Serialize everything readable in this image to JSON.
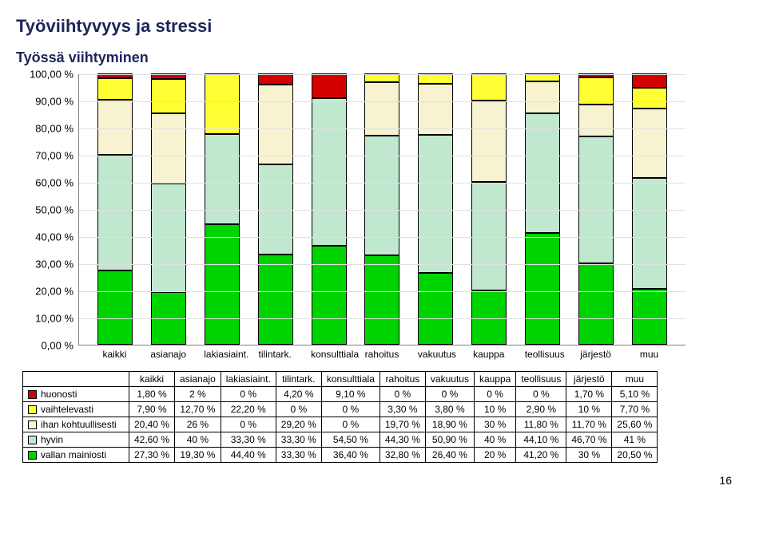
{
  "title_main": "Työviihtyvyys ja stressi",
  "title_sub": "Työssä viihtyminen",
  "page_number": "16",
  "chart": {
    "type": "stacked-bar",
    "y_ticks": [
      "0,00 %",
      "10,00 %",
      "20,00 %",
      "30,00 %",
      "40,00 %",
      "50,00 %",
      "60,00 %",
      "70,00 %",
      "80,00 %",
      "90,00 %",
      "100,00 %"
    ],
    "y_max": 100,
    "categories": [
      "kaikki",
      "asianajo",
      "lakiasiaint.",
      "tilintark.",
      "konsulttiala",
      "rahoitus",
      "vakuutus",
      "kauppa",
      "teollisuus",
      "järjestö",
      "muu"
    ],
    "series": [
      {
        "name": "vallan mainiosti",
        "color": "#00d400",
        "values": [
          27.3,
          19.3,
          44.4,
          33.3,
          36.4,
          32.8,
          26.4,
          20.0,
          41.2,
          30.0,
          20.5
        ]
      },
      {
        "name": "hyvin",
        "color": "#bfe8cf",
        "values": [
          42.6,
          40.0,
          33.3,
          33.3,
          54.5,
          44.3,
          50.9,
          40.0,
          44.1,
          46.7,
          41.0
        ]
      },
      {
        "name": "ihan kohtuullisesti",
        "color": "#f7f2d0",
        "values": [
          20.4,
          26.0,
          0.0,
          29.2,
          0.0,
          19.7,
          18.9,
          30.0,
          11.8,
          11.7,
          25.6
        ]
      },
      {
        "name": "vaihtelevasti",
        "color": "#ffff33",
        "values": [
          7.9,
          12.7,
          22.2,
          0.0,
          0.0,
          3.3,
          3.8,
          10.0,
          2.9,
          10.0,
          7.7
        ]
      },
      {
        "name": "huonosti",
        "color": "#d40000",
        "values": [
          1.8,
          2.0,
          0.0,
          4.2,
          9.1,
          0.0,
          0.0,
          0.0,
          0.0,
          1.7,
          5.1
        ]
      }
    ],
    "table_rows": [
      {
        "label": "huonosti",
        "swatch": "#d40000",
        "cells": [
          "1,80 %",
          "2 %",
          "0 %",
          "4,20 %",
          "9,10 %",
          "0 %",
          "0 %",
          "0 %",
          "0 %",
          "1,70 %",
          "5,10 %"
        ]
      },
      {
        "label": "vaihtelevasti",
        "swatch": "#ffff33",
        "cells": [
          "7,90 %",
          "12,70 %",
          "22,20 %",
          "0 %",
          "0 %",
          "3,30 %",
          "3,80 %",
          "10 %",
          "2,90 %",
          "10 %",
          "7,70 %"
        ]
      },
      {
        "label": "ihan kohtuullisesti",
        "swatch": "#f7f2d0",
        "cells": [
          "20,40 %",
          "26 %",
          "0 %",
          "29,20 %",
          "0 %",
          "19,70 %",
          "18,90 %",
          "30 %",
          "11,80 %",
          "11,70 %",
          "25,60 %"
        ]
      },
      {
        "label": "hyvin",
        "swatch": "#bfe8cf",
        "cells": [
          "42,60 %",
          "40 %",
          "33,30 %",
          "33,30 %",
          "54,50 %",
          "44,30 %",
          "50,90 %",
          "40 %",
          "44,10 %",
          "46,70 %",
          "41 %"
        ]
      },
      {
        "label": "vallan mainiosti",
        "swatch": "#00d400",
        "cells": [
          "27,30 %",
          "19,30 %",
          "44,40 %",
          "33,30 %",
          "36,40 %",
          "32,80 %",
          "26,40 %",
          "20 %",
          "41,20 %",
          "30 %",
          "20,50 %"
        ]
      }
    ]
  }
}
